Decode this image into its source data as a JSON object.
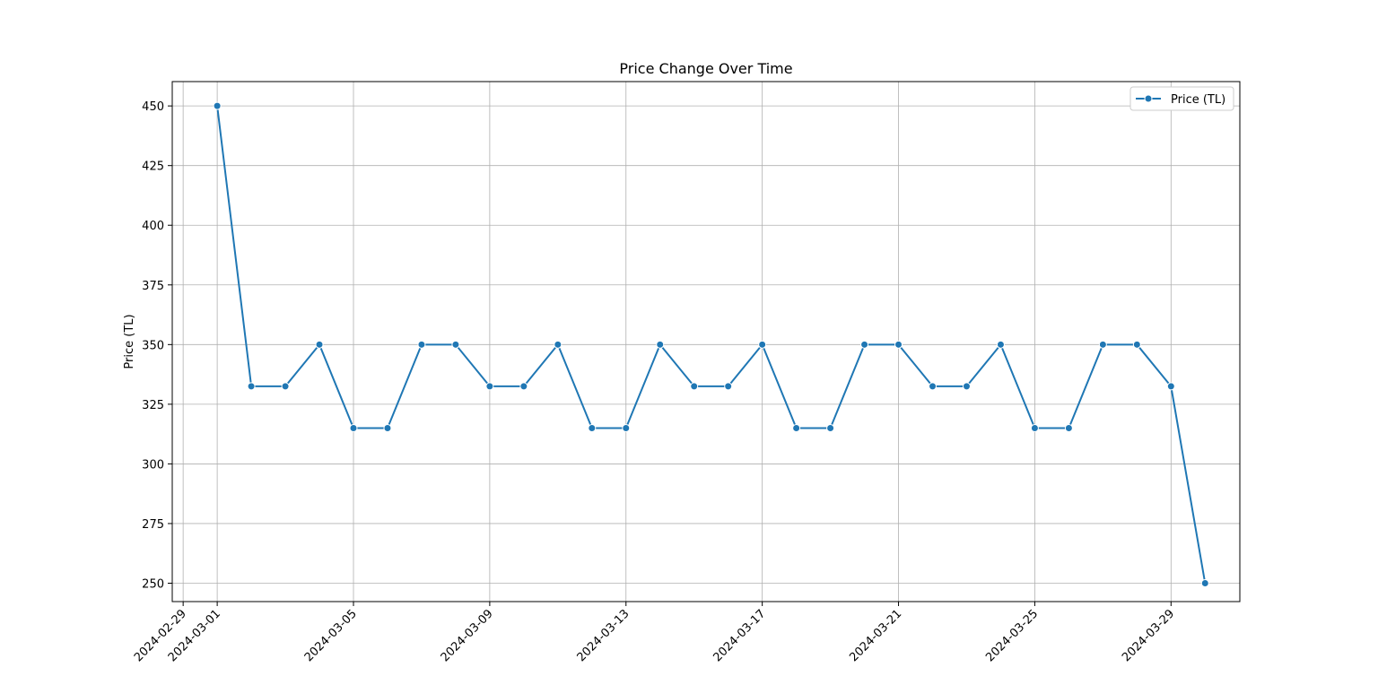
{
  "chart_data": {
    "type": "line",
    "title": "Price Change Over Time",
    "xlabel": "",
    "ylabel": "Price (TL)",
    "x_ticks": [
      "2024-02-29",
      "2024-03-01",
      "2024-03-05",
      "2024-03-09",
      "2024-03-13",
      "2024-03-17",
      "2024-03-21",
      "2024-03-25",
      "2024-03-29"
    ],
    "y_ticks": [
      250,
      275,
      300,
      325,
      350,
      375,
      400,
      425,
      450
    ],
    "xlim": [
      "2024-02-28",
      "2024-03-31"
    ],
    "ylim": [
      242.3,
      460.2
    ],
    "grid": true,
    "legend_position": "top-right",
    "series": [
      {
        "name": "Price (TL)",
        "color": "#1f77b4",
        "marker": "circle",
        "x": [
          "2024-03-01",
          "2024-03-02",
          "2024-03-03",
          "2024-03-04",
          "2024-03-05",
          "2024-03-06",
          "2024-03-07",
          "2024-03-08",
          "2024-03-09",
          "2024-03-10",
          "2024-03-11",
          "2024-03-12",
          "2024-03-13",
          "2024-03-14",
          "2024-03-15",
          "2024-03-16",
          "2024-03-17",
          "2024-03-18",
          "2024-03-19",
          "2024-03-20",
          "2024-03-21",
          "2024-03-22",
          "2024-03-23",
          "2024-03-24",
          "2024-03-25",
          "2024-03-26",
          "2024-03-27",
          "2024-03-28",
          "2024-03-29",
          "2024-03-30"
        ],
        "y": [
          450,
          332.5,
          332.5,
          350,
          315,
          315,
          350,
          350,
          332.5,
          332.5,
          350,
          315,
          315,
          350,
          332.5,
          332.5,
          350,
          315,
          315,
          350,
          350,
          332.5,
          332.5,
          350,
          315,
          315,
          350,
          350,
          332.5,
          250
        ]
      }
    ]
  }
}
